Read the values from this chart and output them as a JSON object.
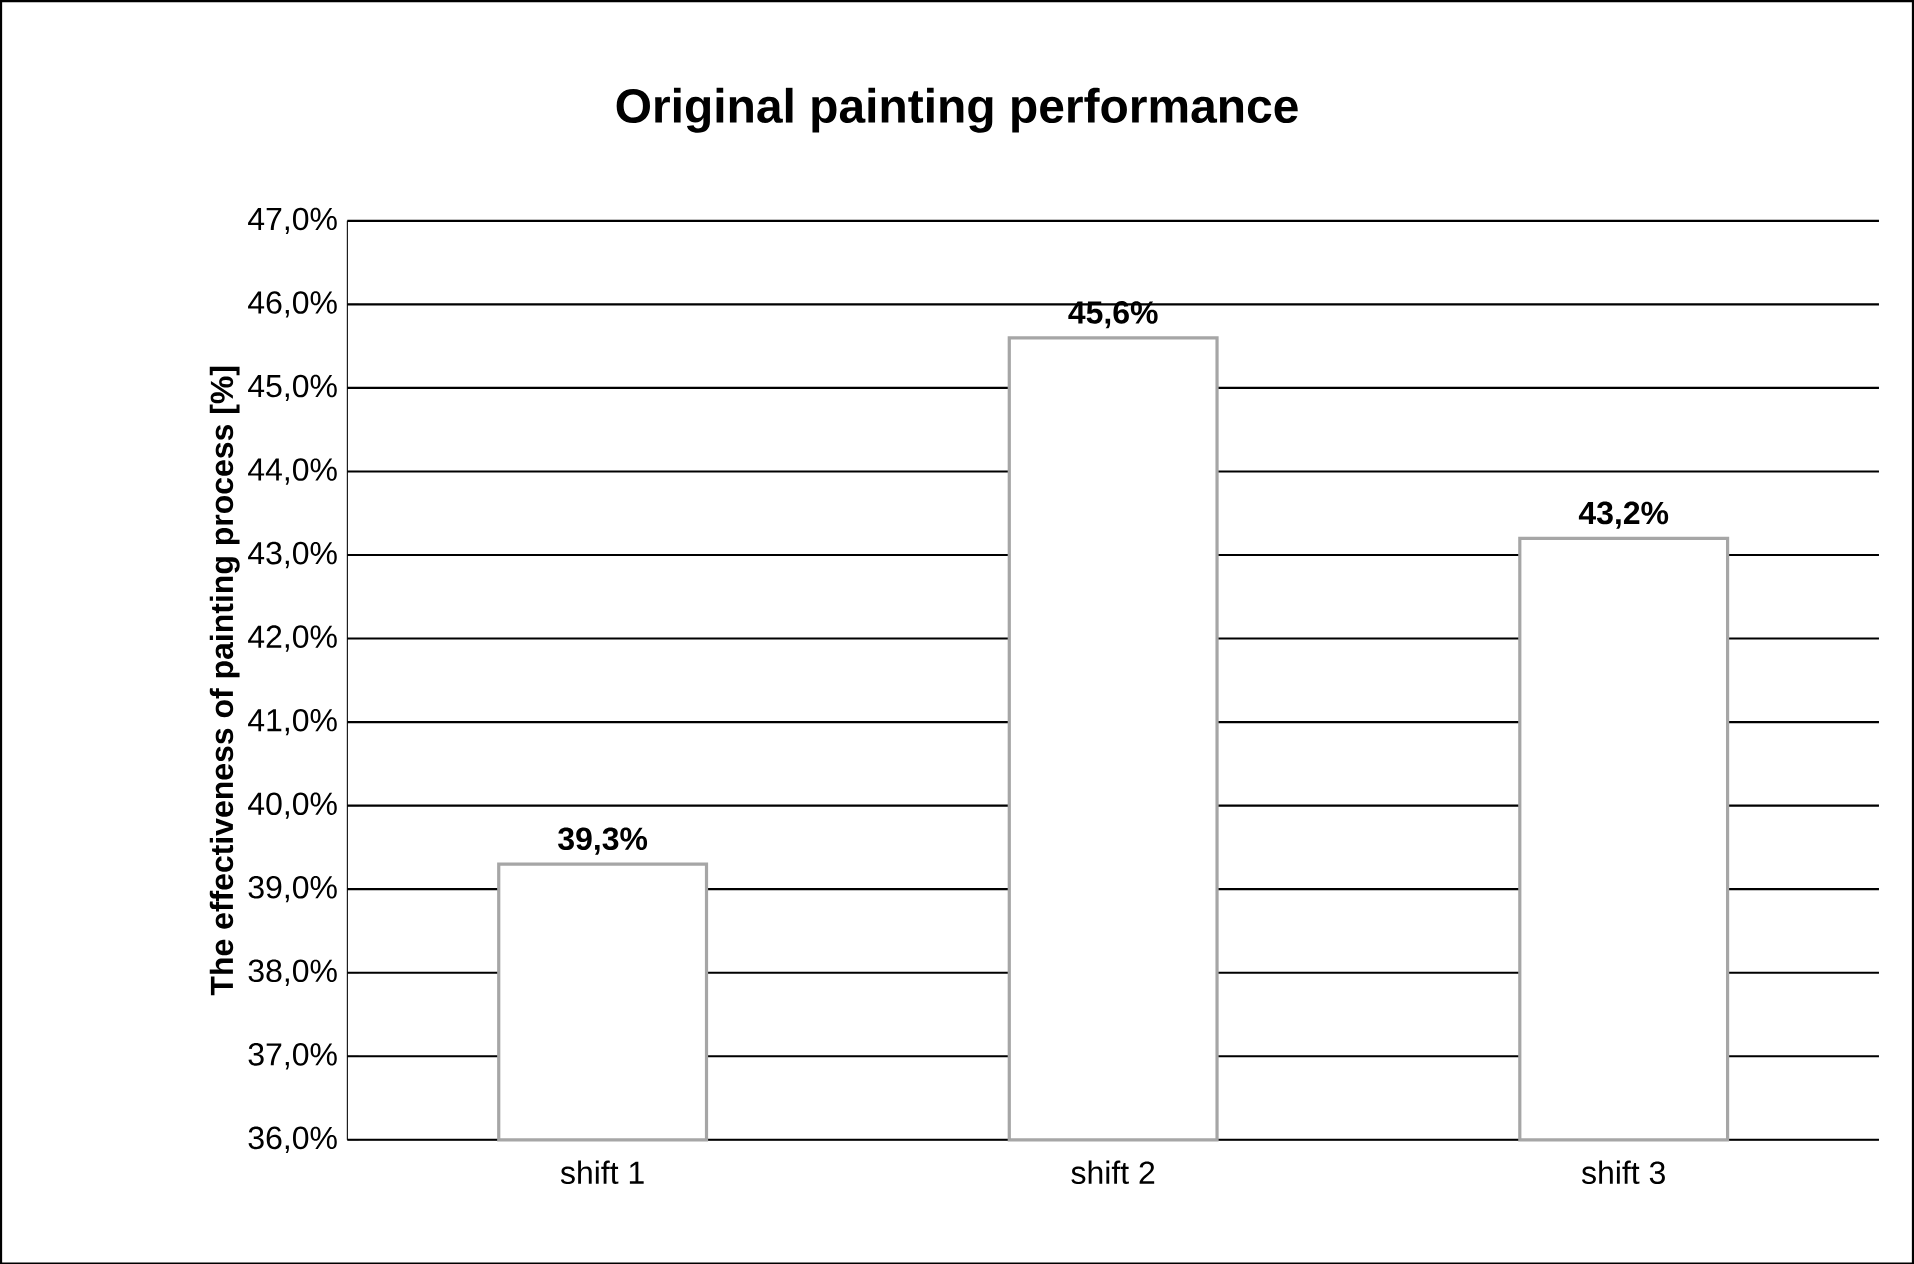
{
  "chart_data": {
    "type": "bar",
    "title": "Original painting performance",
    "ylabel": "The effectiveness of painting process [%]",
    "categories": [
      "shift 1",
      "shift 2",
      "shift 3"
    ],
    "values": [
      39.3,
      45.6,
      43.2
    ],
    "value_labels": [
      "39,3%",
      "45,6%",
      "43,2%"
    ],
    "color": "#ffffff",
    "ylim": [
      36,
      47
    ],
    "yticks": [
      {
        "value": 36,
        "label": "36,0%"
      },
      {
        "value": 37,
        "label": "37,0%"
      },
      {
        "value": 38,
        "label": "38,0%"
      },
      {
        "value": 39,
        "label": "39,0%"
      },
      {
        "value": 40,
        "label": "40,0%"
      },
      {
        "value": 41,
        "label": "41,0%"
      },
      {
        "value": 42,
        "label": "42,0%"
      },
      {
        "value": 43,
        "label": "43,0%"
      },
      {
        "value": 44,
        "label": "44,0%"
      },
      {
        "value": 45,
        "label": "45,0%"
      },
      {
        "value": 46,
        "label": "46,0%"
      },
      {
        "value": 47,
        "label": "47,0%"
      }
    ],
    "grid": "y"
  }
}
